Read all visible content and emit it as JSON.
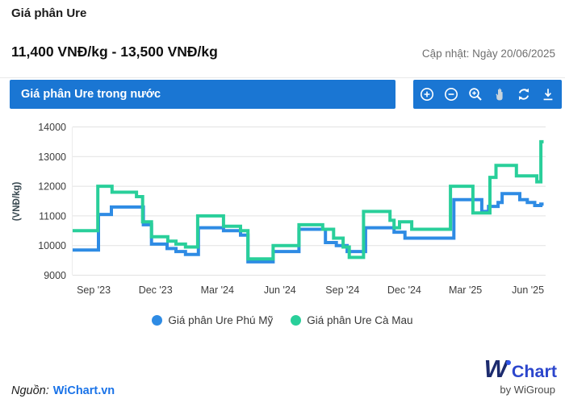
{
  "header": {
    "title": "Giá phân Ure",
    "subtitle": "11,400 VNĐ/kg - 13,500 VNĐ/kg",
    "updated": "Cập nhật: Ngày 20/06/2025"
  },
  "panel": {
    "title": "Giá phân Ure trong nước",
    "toolbar_icons": [
      "zoom-in",
      "zoom-out",
      "zoom-selection",
      "pan",
      "reset-zoom",
      "download"
    ]
  },
  "colors": {
    "panel_blue": "#1a76d3",
    "series_blue": "#2e8be4",
    "series_green": "#29cf9a",
    "grid": "#e2e2e2",
    "tick_text": "#3d3d3d",
    "link_blue": "#1a73e8",
    "logo_navy": "#1c2b6e",
    "logo_blue": "#2c46cc"
  },
  "chart_data": {
    "type": "line",
    "step": true,
    "title": "Giá phân Ure trong nước",
    "xlabel": "",
    "ylabel": "(VNĐ/kg)",
    "ylim": [
      9000,
      14000
    ],
    "y_ticks": [
      9000,
      10000,
      11000,
      12000,
      13000,
      14000
    ],
    "grid": "horizontal",
    "legend_position": "bottom",
    "x_range": [
      "2023-08-01",
      "2025-06-27"
    ],
    "x_end": "2025-06-24",
    "x_ticks": [
      {
        "label": "Sep '23",
        "date": "2023-09-01"
      },
      {
        "label": "Dec '23",
        "date": "2023-12-01"
      },
      {
        "label": "Mar '24",
        "date": "2024-03-01"
      },
      {
        "label": "Jun '24",
        "date": "2024-06-01"
      },
      {
        "label": "Sep '24",
        "date": "2024-09-01"
      },
      {
        "label": "Dec '24",
        "date": "2024-12-01"
      },
      {
        "label": "Mar '25",
        "date": "2025-03-01"
      },
      {
        "label": "Jun '25",
        "date": "2025-06-01"
      }
    ],
    "series": [
      {
        "name": "Giá phân Ure Phú Mỹ",
        "color": "#2e8be4",
        "points": [
          {
            "d": "2023-08-01",
            "v": 9850
          },
          {
            "d": "2023-09-08",
            "v": 11050
          },
          {
            "d": "2023-09-27",
            "v": 11300
          },
          {
            "d": "2023-11-13",
            "v": 10700
          },
          {
            "d": "2023-11-25",
            "v": 10050
          },
          {
            "d": "2023-12-18",
            "v": 9900
          },
          {
            "d": "2023-12-31",
            "v": 9800
          },
          {
            "d": "2024-01-14",
            "v": 9700
          },
          {
            "d": "2024-02-02",
            "v": 10600
          },
          {
            "d": "2024-03-10",
            "v": 10500
          },
          {
            "d": "2024-04-04",
            "v": 10350
          },
          {
            "d": "2024-04-15",
            "v": 9450
          },
          {
            "d": "2024-05-22",
            "v": 9800
          },
          {
            "d": "2024-06-29",
            "v": 10550
          },
          {
            "d": "2024-08-07",
            "v": 10100
          },
          {
            "d": "2024-08-23",
            "v": 10000
          },
          {
            "d": "2024-09-08",
            "v": 9800
          },
          {
            "d": "2024-10-05",
            "v": 10600
          },
          {
            "d": "2024-11-16",
            "v": 10450
          },
          {
            "d": "2024-12-02",
            "v": 10250
          },
          {
            "d": "2025-02-12",
            "v": 11550
          },
          {
            "d": "2025-03-25",
            "v": 11150
          },
          {
            "d": "2025-04-04",
            "v": 11320
          },
          {
            "d": "2025-04-18",
            "v": 11450
          },
          {
            "d": "2025-04-24",
            "v": 11750
          },
          {
            "d": "2025-05-20",
            "v": 11550
          },
          {
            "d": "2025-05-31",
            "v": 11450
          },
          {
            "d": "2025-06-11",
            "v": 11350
          },
          {
            "d": "2025-06-20",
            "v": 11400
          }
        ]
      },
      {
        "name": "Giá phân Ure Cà Mau",
        "color": "#29cf9a",
        "points": [
          {
            "d": "2023-08-01",
            "v": 10500
          },
          {
            "d": "2023-09-07",
            "v": 12000
          },
          {
            "d": "2023-09-28",
            "v": 11800
          },
          {
            "d": "2023-11-03",
            "v": 11650
          },
          {
            "d": "2023-11-12",
            "v": 10800
          },
          {
            "d": "2023-11-25",
            "v": 10300
          },
          {
            "d": "2023-12-19",
            "v": 10150
          },
          {
            "d": "2023-12-31",
            "v": 10050
          },
          {
            "d": "2024-01-14",
            "v": 9950
          },
          {
            "d": "2024-02-01",
            "v": 11000
          },
          {
            "d": "2024-03-10",
            "v": 10650
          },
          {
            "d": "2024-04-04",
            "v": 10500
          },
          {
            "d": "2024-04-15",
            "v": 9550
          },
          {
            "d": "2024-05-22",
            "v": 10000
          },
          {
            "d": "2024-06-29",
            "v": 10700
          },
          {
            "d": "2024-08-03",
            "v": 10550
          },
          {
            "d": "2024-08-19",
            "v": 10250
          },
          {
            "d": "2024-09-02",
            "v": 9950
          },
          {
            "d": "2024-09-11",
            "v": 9600
          },
          {
            "d": "2024-10-02",
            "v": 11150
          },
          {
            "d": "2024-11-10",
            "v": 10850
          },
          {
            "d": "2024-11-16",
            "v": 10600
          },
          {
            "d": "2024-11-24",
            "v": 10800
          },
          {
            "d": "2024-12-12",
            "v": 10550
          },
          {
            "d": "2025-02-07",
            "v": 12000
          },
          {
            "d": "2025-03-12",
            "v": 11100
          },
          {
            "d": "2025-04-06",
            "v": 12300
          },
          {
            "d": "2025-04-15",
            "v": 12700
          },
          {
            "d": "2025-05-15",
            "v": 12350
          },
          {
            "d": "2025-06-14",
            "v": 12150
          },
          {
            "d": "2025-06-20",
            "v": 13500
          }
        ]
      }
    ]
  },
  "footer": {
    "source_label": "Nguồn:",
    "source_link": "WiChart.vn",
    "logo_w": "W",
    "logo_chart": "Chart",
    "logo_by": "by WiGroup"
  }
}
